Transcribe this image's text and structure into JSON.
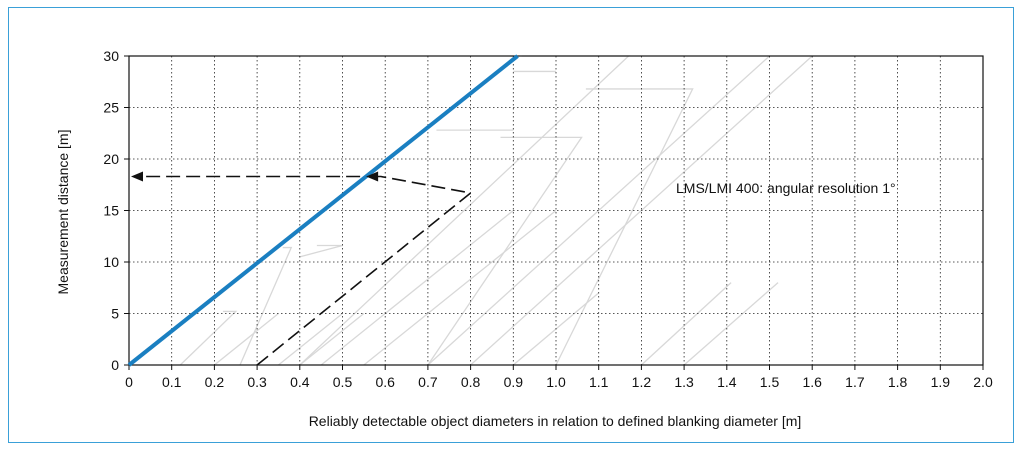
{
  "colors": {
    "frame_border": "#3aa0d8",
    "main_line": "#1a7fc1",
    "background_lines": "#d8d8d8",
    "example_dashed": "#111111",
    "grid": "#222222"
  },
  "chart_data": {
    "type": "line",
    "title": "",
    "xlabel": "Reliably detectable object diameters in relation to defined blanking diameter [m]",
    "ylabel": "Measurement distance [m]",
    "xlim": [
      0,
      2.0
    ],
    "ylim": [
      0,
      30
    ],
    "x_ticks": [
      "0",
      "0.1",
      "0.2",
      "0.3",
      "0.4",
      "0.5",
      "0.6",
      "0.7",
      "0.8",
      "0.9",
      "1.0",
      "1.1",
      "1.2",
      "1.3",
      "1.4",
      "1.5",
      "1.6",
      "1.7",
      "1.8",
      "1.9",
      "2.0"
    ],
    "y_ticks": [
      "0",
      "5",
      "10",
      "15",
      "20",
      "25",
      "30"
    ],
    "grid": true,
    "annotation": "LMS/LMI 400: angular resolution 1°",
    "series": [
      {
        "style": "solid-blue-thick",
        "x": [
          0,
          0.91
        ],
        "y": [
          0,
          30
        ]
      },
      {
        "style": "dashed-black",
        "x": [
          0.3,
          0.8,
          0.59,
          0.56
        ],
        "y": [
          0,
          16.7,
          18.3,
          18.3
        ]
      }
    ],
    "arrow_to_axis": {
      "x": 0.0,
      "y": 18.3
    },
    "background_lines": [
      {
        "x": [
          0.12,
          0.25,
          0.22
        ],
        "y": [
          0,
          5.2,
          5.2
        ]
      },
      {
        "x": [
          0.2,
          0.35
        ],
        "y": [
          0,
          5.0
        ]
      },
      {
        "x": [
          0.35,
          0.5
        ],
        "y": [
          0,
          5.0
        ]
      },
      {
        "x": [
          0.4,
          0.55
        ],
        "y": [
          0,
          5.0
        ]
      },
      {
        "x": [
          0.45,
          0.9
        ],
        "y": [
          0,
          15.0
        ]
      },
      {
        "x": [
          0.55,
          1.0
        ],
        "y": [
          0,
          15.0
        ]
      },
      {
        "x": [
          0.7,
          1.06,
          0.87
        ],
        "y": [
          0,
          22.1,
          22.1
        ]
      },
      {
        "x": [
          0.9,
          1.1
        ],
        "y": [
          0,
          7.0
        ]
      },
      {
        "x": [
          1.0,
          1.32,
          1.07
        ],
        "y": [
          0,
          26.8,
          26.8
        ]
      },
      {
        "x": [
          1.2,
          1.41
        ],
        "y": [
          0,
          8.0
        ]
      },
      {
        "x": [
          1.3,
          1.52
        ],
        "y": [
          0,
          8.0
        ]
      },
      {
        "x": [
          0.7,
          1.5
        ],
        "y": [
          0,
          30
        ]
      },
      {
        "x": [
          0.8,
          1.6
        ],
        "y": [
          0,
          30
        ]
      },
      {
        "x": [
          0.4,
          1.17,
          0.92
        ],
        "y": [
          0,
          30,
          30
        ]
      },
      {
        "x": [
          0.26,
          0.38,
          0.36
        ],
        "y": [
          0,
          11.4,
          11.4
        ]
      },
      {
        "x": [
          0.4,
          0.5,
          0.44
        ],
        "y": [
          10.5,
          11.6,
          11.6
        ]
      },
      {
        "x": [
          0.72,
          0.9
        ],
        "y": [
          22.8,
          22.8
        ]
      },
      {
        "x": [
          0.9,
          1.0
        ],
        "y": [
          28.5,
          28.5
        ]
      }
    ]
  }
}
